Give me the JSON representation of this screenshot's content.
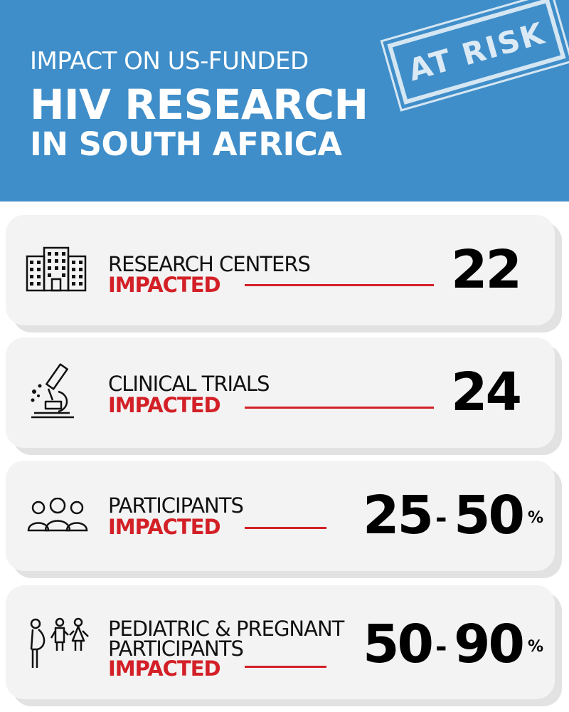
{
  "header": {
    "subtitle": "IMPACT ON US-FUNDED",
    "title_line1": "HIV RESEARCH",
    "title_line2": "IN SOUTH AFRICA",
    "stamp": "AT RISK",
    "background_color": "#3f8ec9"
  },
  "accent_color": "#d32027",
  "stats": [
    {
      "icon": "building-icon",
      "label_lines": [
        "RESEARCH CENTERS"
      ],
      "emphasis": "IMPACTED",
      "value": "22"
    },
    {
      "icon": "microscope-icon",
      "label_lines": [
        "CLINICAL TRIALS"
      ],
      "emphasis": "IMPACTED",
      "value": "24"
    },
    {
      "icon": "people-group-icon",
      "label_lines": [
        "PARTICIPANTS"
      ],
      "emphasis": "IMPACTED",
      "value_low": "25",
      "separator": "-",
      "value_high": "50",
      "unit": "%"
    },
    {
      "icon": "pregnant-woman-and-children-icon",
      "label_lines": [
        "PEDIATRIC & PREGNANT",
        "PARTICIPANTS"
      ],
      "emphasis": "IMPACTED",
      "value_low": "50",
      "separator": "-",
      "value_high": "90",
      "unit": "%"
    }
  ]
}
